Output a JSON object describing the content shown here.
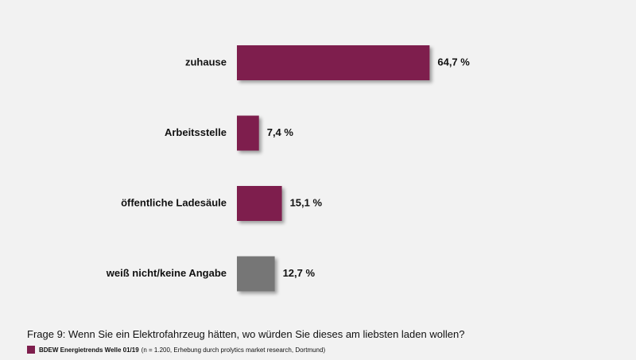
{
  "chart_data": {
    "type": "bar",
    "orientation": "horizontal",
    "categories": [
      "zuhause",
      "Arbeitsstelle",
      "öffentliche Ladesäule",
      "weiß nicht/keine Angabe"
    ],
    "values": [
      64.7,
      7.4,
      15.1,
      12.7
    ],
    "value_labels": [
      "64,7 %",
      "7,4 %",
      "15,1 %",
      "12,7 %"
    ],
    "bar_colors": [
      "#7e1e4d",
      "#7e1e4d",
      "#7e1e4d",
      "#767676"
    ],
    "xlim": [
      0,
      100
    ],
    "grid": false,
    "title": "",
    "xlabel": "",
    "ylabel": ""
  },
  "footer": {
    "question": "Frage 9: Wenn Sie ein Elektrofahrzeug hätten, wo würden Sie dieses am liebsten laden wollen?",
    "source_bold": "BDEW Energietrends Welle 01/19",
    "source_detail": "(n = 1.200, Erhebung durch prolytics market research, Dortmund)",
    "source_color": "#7e1e4d"
  }
}
